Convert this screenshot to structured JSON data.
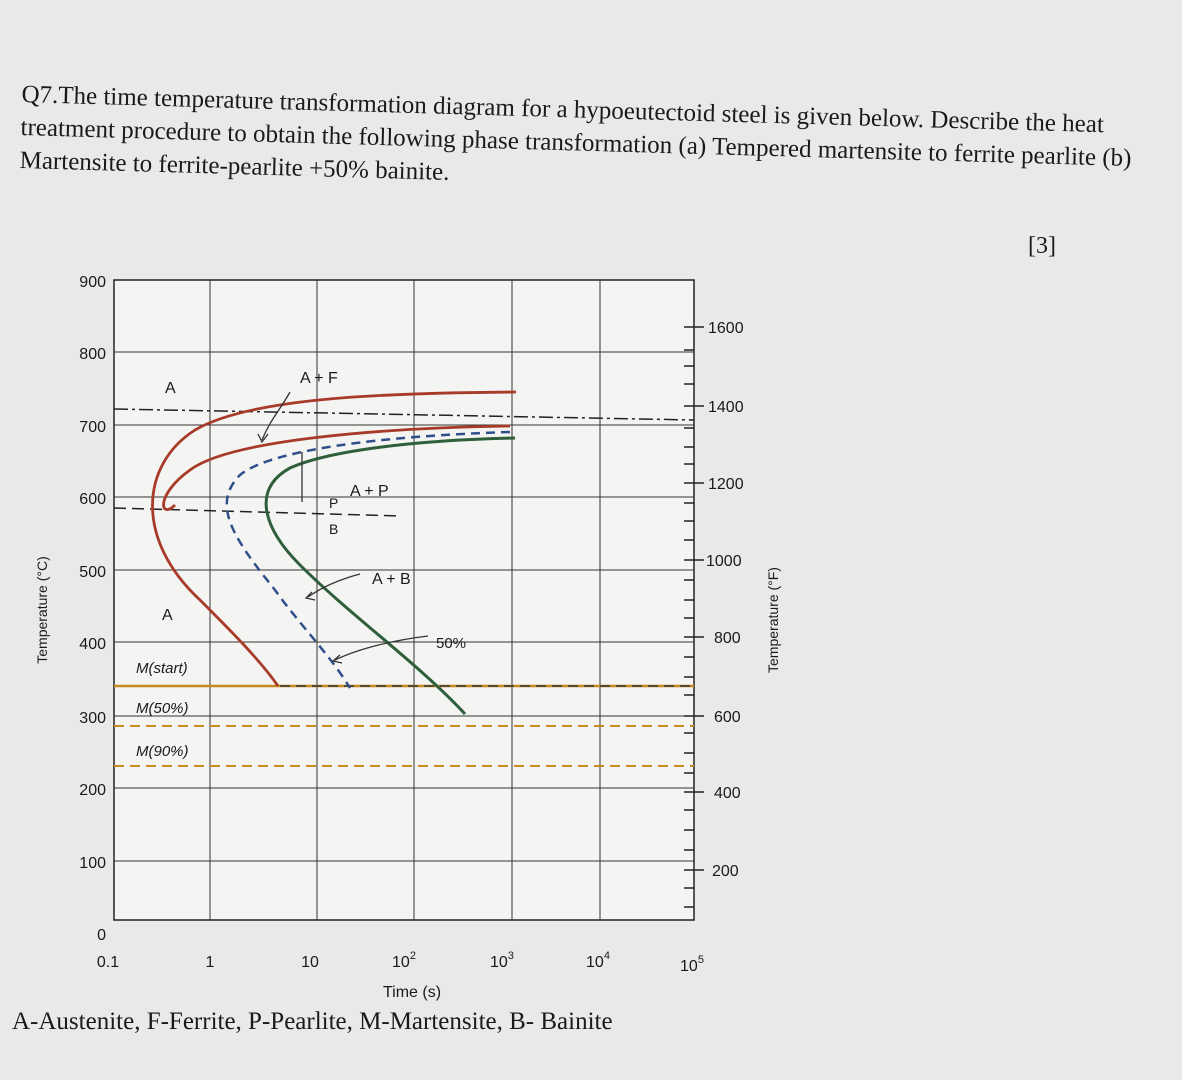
{
  "question": {
    "number": "Q7.",
    "text": "The time temperature transformation diagram for a hypoeutectoid steel is given below. Describe the heat treatment procedure to obtain the following phase transformation (a) Tempered martensite to ferrite pearlite (b) Martensite to ferrite-pearlite +50% bainite.",
    "marks": "[3]"
  },
  "diagram": {
    "y_label_left": "Temperature (°C)",
    "y_label_right": "Temperature (°F)",
    "x_label": "Time (s)",
    "y_ticks_c": [
      "900",
      "800",
      "700",
      "600",
      "500",
      "400",
      "300",
      "200",
      "100",
      "0"
    ],
    "y_ticks_f": [
      "1600",
      "1400",
      "1200",
      "1000",
      "800",
      "600",
      "400",
      "200"
    ],
    "x_ticks": [
      {
        "base": "0.1",
        "exp": ""
      },
      {
        "base": "1",
        "exp": ""
      },
      {
        "base": "10",
        "exp": ""
      },
      {
        "base": "10",
        "exp": "2"
      },
      {
        "base": "10",
        "exp": "3"
      },
      {
        "base": "10",
        "exp": "4"
      },
      {
        "base": "10",
        "exp": "5"
      }
    ],
    "labels": {
      "a_upper": "A",
      "a_lower": "A",
      "af": "A + F",
      "ap": "A + P",
      "p": "P",
      "b": "B",
      "ab": "A + B",
      "fifty": "50%",
      "m_start": "M(start)",
      "m_50": "M(50%)",
      "m_90": "M(90%)"
    }
  },
  "caption": "A-Austenite, F-Ferrite, P-Pearlite, M-Martensite, B- Bainite"
}
